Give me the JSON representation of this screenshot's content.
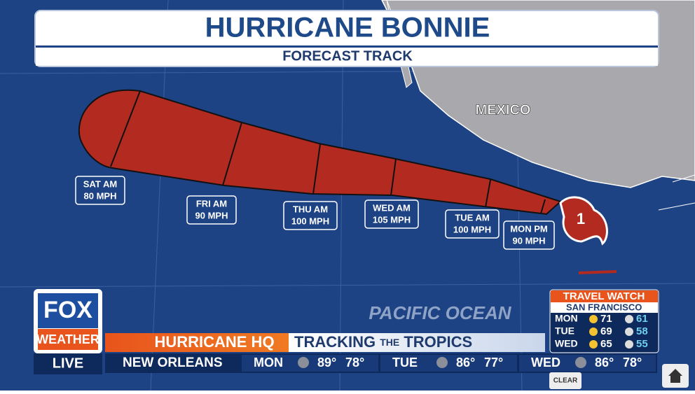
{
  "header": {
    "title": "HURRICANE BONNIE",
    "subtitle": "FORECAST TRACK"
  },
  "map": {
    "land_label": "MEXICO",
    "ocean_label": "PACIFIC OCEAN",
    "storm_category": "1",
    "points": [
      {
        "time": "SAT AM",
        "wind": "80 MPH"
      },
      {
        "time": "FRI AM",
        "wind": "90 MPH"
      },
      {
        "time": "THU AM",
        "wind": "100 MPH"
      },
      {
        "time": "WED AM",
        "wind": "105 MPH"
      },
      {
        "time": "TUE AM",
        "wind": "100 MPH"
      },
      {
        "time": "MON PM",
        "wind": "90 MPH"
      }
    ]
  },
  "logo": {
    "brand": "FOX",
    "sub": "WEATHER",
    "status": "LIVE"
  },
  "ticker": {
    "section": "HURRICANE HQ",
    "headline_1": "TRACKING",
    "headline_2": "THE",
    "headline_3": "TROPICS",
    "city": "NEW ORLEANS",
    "days": [
      {
        "day": "MON",
        "high": "89°",
        "low": "78°"
      },
      {
        "day": "TUE",
        "high": "86°",
        "low": "77°"
      },
      {
        "day": "WED",
        "high": "86°",
        "low": "78°"
      }
    ]
  },
  "travel_watch": {
    "title": "TRAVEL WATCH",
    "city": "SAN FRANCISCO",
    "rows": [
      {
        "day": "MON",
        "high": 71,
        "low": 61
      },
      {
        "day": "TUE",
        "high": 69,
        "low": 58
      },
      {
        "day": "WED",
        "high": 65,
        "low": 55
      }
    ]
  },
  "controls": {
    "clear": "CLEAR"
  }
}
